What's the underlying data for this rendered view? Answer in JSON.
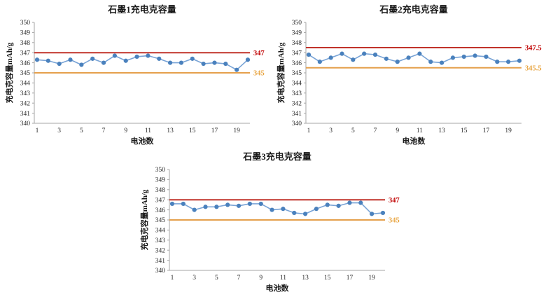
{
  "page": {
    "background": "#ffffff"
  },
  "chart_data": [
    {
      "type": "line",
      "title": "石墨1充电克容量",
      "xlabel": "电池数",
      "ylabel": "充电克容量mAh/g",
      "x": [
        1,
        2,
        3,
        4,
        5,
        6,
        7,
        8,
        9,
        10,
        11,
        12,
        13,
        14,
        15,
        16,
        17,
        18,
        19,
        20
      ],
      "series": [
        {
          "name": "充电克容量",
          "values": [
            346.3,
            346.2,
            345.9,
            346.3,
            345.8,
            346.4,
            346.0,
            346.7,
            346.2,
            346.6,
            346.7,
            346.4,
            346.0,
            346.0,
            346.4,
            345.9,
            346.0,
            345.9,
            345.3,
            346.3
          ]
        }
      ],
      "ref_lines": [
        {
          "role": "upper",
          "value": 347,
          "label": "347"
        },
        {
          "role": "lower",
          "value": 345,
          "label": "345"
        }
      ],
      "ylim": [
        340,
        350
      ],
      "yticks": [
        340,
        341,
        342,
        343,
        344,
        345,
        346,
        347,
        348,
        349,
        350
      ],
      "xticks": [
        1,
        3,
        5,
        7,
        9,
        11,
        13,
        15,
        17,
        19
      ],
      "grid": false,
      "legend": "none"
    },
    {
      "type": "line",
      "title": "石墨2充电克容量",
      "xlabel": "电池数",
      "ylabel": "充电克容量mAh/g",
      "x": [
        1,
        2,
        3,
        4,
        5,
        6,
        7,
        8,
        9,
        10,
        11,
        12,
        13,
        14,
        15,
        16,
        17,
        18,
        19,
        20
      ],
      "series": [
        {
          "name": "充电克容量",
          "values": [
            346.8,
            346.1,
            346.5,
            346.9,
            346.3,
            346.9,
            346.8,
            346.4,
            346.1,
            346.5,
            346.9,
            346.1,
            346.0,
            346.5,
            346.6,
            346.7,
            346.6,
            346.1,
            346.1,
            346.2
          ]
        }
      ],
      "ref_lines": [
        {
          "role": "upper",
          "value": 347.5,
          "label": "347.5"
        },
        {
          "role": "lower",
          "value": 345.5,
          "label": "345.5"
        }
      ],
      "ylim": [
        340,
        350
      ],
      "yticks": [
        340,
        341,
        342,
        343,
        344,
        345,
        346,
        347,
        348,
        349,
        350
      ],
      "xticks": [
        1,
        3,
        5,
        7,
        9,
        11,
        13,
        15,
        17,
        19
      ],
      "grid": false,
      "legend": "none"
    },
    {
      "type": "line",
      "title": "石墨3充电克容量",
      "xlabel": "电池数",
      "ylabel": "充电克容量mAh/g",
      "x": [
        1,
        2,
        3,
        4,
        5,
        6,
        7,
        8,
        9,
        10,
        11,
        12,
        13,
        14,
        15,
        16,
        17,
        18,
        19,
        20
      ],
      "series": [
        {
          "name": "充电克容量",
          "values": [
            346.6,
            346.6,
            346.0,
            346.3,
            346.3,
            346.5,
            346.4,
            346.6,
            346.6,
            346.0,
            346.1,
            345.7,
            345.6,
            346.1,
            346.5,
            346.4,
            346.7,
            346.7,
            345.6,
            345.7
          ]
        }
      ],
      "ref_lines": [
        {
          "role": "upper",
          "value": 347,
          "label": "347"
        },
        {
          "role": "lower",
          "value": 345,
          "label": "345"
        }
      ],
      "ylim": [
        340,
        350
      ],
      "yticks": [
        340,
        341,
        342,
        343,
        344,
        345,
        346,
        347,
        348,
        349,
        350
      ],
      "xticks": [
        1,
        3,
        5,
        7,
        9,
        11,
        13,
        15,
        17,
        19
      ],
      "grid": false,
      "legend": "none"
    }
  ],
  "colors": {
    "series_line": "#78a3d6",
    "series_marker": "#4a81bd",
    "upper_line": "#c1332a",
    "upper_label": "#c00000",
    "lower_line": "#e5a04c",
    "lower_label": "#e8a33d",
    "axis": "#a6a6a6",
    "tick_text": "#262626"
  }
}
